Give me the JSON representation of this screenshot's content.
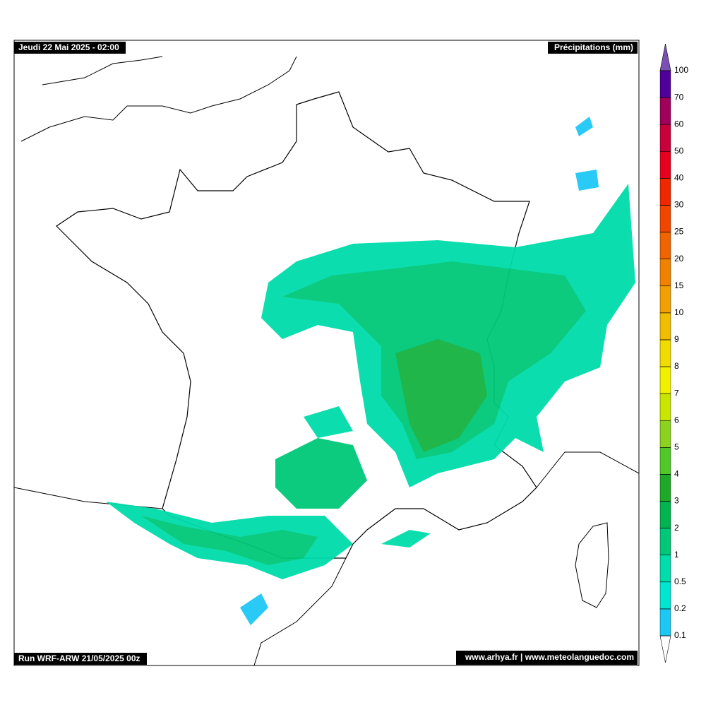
{
  "header": {
    "title": "Jeudi 22 Mai 2025 - 02:00",
    "variable": "Précipitations (mm)"
  },
  "footer": {
    "run": "Run WRF-ARW 21/05/2025 00z",
    "credits": "www.arhya.fr | www.meteolanguedoc.com"
  },
  "colorbar": {
    "levels": [
      0.1,
      0.2,
      0.5,
      1,
      2,
      3,
      4,
      5,
      6,
      7,
      8,
      9,
      10,
      15,
      20,
      25,
      30,
      40,
      50,
      60,
      70,
      100
    ],
    "colors": [
      "#1ec8f5",
      "#00e6d2",
      "#00dcaa",
      "#00c878",
      "#00b450",
      "#1eaa28",
      "#50c828",
      "#8cd21e",
      "#c8e600",
      "#f0f000",
      "#f0dc00",
      "#f0be00",
      "#f0a000",
      "#f08200",
      "#f06400",
      "#f04600",
      "#f02800",
      "#e6001e",
      "#c8003c",
      "#a0005a",
      "#50009a"
    ],
    "under_color": "#ffffff",
    "over_color": "#7a50b4"
  }
}
